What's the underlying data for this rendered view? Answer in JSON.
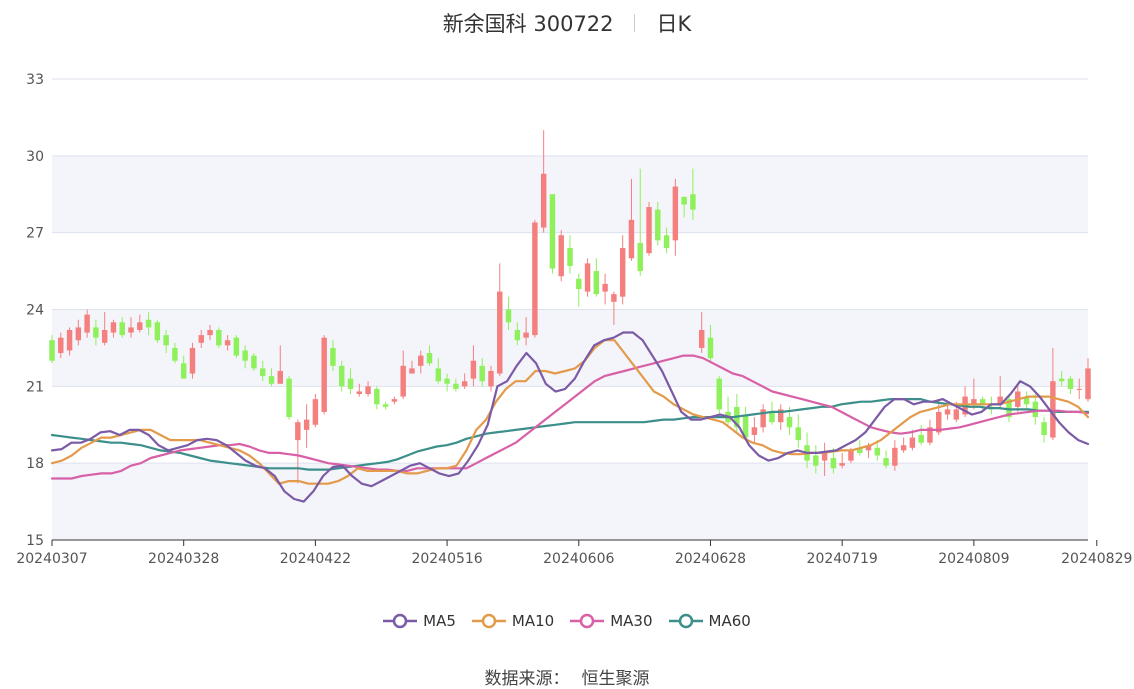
{
  "header": {
    "stock": "新余国科 300722",
    "period": "日K"
  },
  "source": {
    "label": "数据来源：",
    "value": "恒生聚源"
  },
  "colors": {
    "up": "#f47f7f",
    "down": "#8ef05b",
    "ma5": "#7b5aa6",
    "ma10": "#e39a4b",
    "ma30": "#d860a6",
    "ma60": "#3c8f8a",
    "band": "#f4f5fb",
    "grid": "#dde2ee"
  },
  "chart_data": {
    "type": "candlestick",
    "y_ticks": [
      15,
      18,
      21,
      24,
      27,
      30,
      33
    ],
    "ylim": [
      15,
      33
    ],
    "x_ticks": [
      {
        "index": 0,
        "label": "20240307"
      },
      {
        "index": 15,
        "label": "20240328"
      },
      {
        "index": 30,
        "label": "20240422"
      },
      {
        "index": 45,
        "label": "20240516"
      },
      {
        "index": 60,
        "label": "20240606"
      },
      {
        "index": 75,
        "label": "20240628"
      },
      {
        "index": 90,
        "label": "20240719"
      },
      {
        "index": 105,
        "label": "20240809"
      },
      {
        "index": 119,
        "label": "20240829"
      }
    ],
    "candles": [
      [
        22.8,
        22.0,
        23.0,
        21.9
      ],
      [
        22.3,
        22.9,
        23.1,
        22.1
      ],
      [
        22.4,
        23.2,
        23.3,
        22.2
      ],
      [
        22.8,
        23.3,
        23.6,
        22.6
      ],
      [
        23.1,
        23.8,
        24.0,
        22.9
      ],
      [
        23.3,
        22.9,
        23.6,
        22.6
      ],
      [
        22.7,
        23.2,
        23.9,
        22.6
      ],
      [
        23.1,
        23.5,
        23.6,
        22.9
      ],
      [
        23.5,
        23.0,
        23.7,
        22.9
      ],
      [
        23.1,
        23.3,
        23.7,
        22.9
      ],
      [
        23.2,
        23.5,
        23.8,
        23.1
      ],
      [
        23.6,
        23.3,
        23.9,
        23.0
      ],
      [
        23.5,
        22.8,
        23.6,
        22.7
      ],
      [
        23.0,
        22.6,
        23.2,
        22.3
      ],
      [
        22.5,
        22.0,
        22.7,
        21.9
      ],
      [
        21.9,
        21.3,
        22.2,
        21.3
      ],
      [
        21.5,
        22.5,
        22.7,
        21.3
      ],
      [
        22.7,
        23.0,
        23.2,
        22.5
      ],
      [
        23.0,
        23.2,
        23.4,
        22.8
      ],
      [
        23.2,
        22.6,
        23.3,
        22.5
      ],
      [
        22.6,
        22.8,
        23.0,
        22.4
      ],
      [
        22.9,
        22.2,
        23.0,
        22.1
      ],
      [
        22.4,
        22.0,
        22.6,
        21.7
      ],
      [
        22.2,
        21.7,
        22.3,
        21.6
      ],
      [
        21.7,
        21.4,
        22.0,
        21.2
      ],
      [
        21.4,
        21.1,
        21.7,
        21.0
      ],
      [
        21.1,
        21.6,
        22.6,
        21.1
      ],
      [
        21.3,
        19.8,
        21.4,
        19.7
      ],
      [
        18.9,
        19.6,
        19.7,
        17.2
      ],
      [
        19.3,
        19.7,
        20.3,
        18.6
      ],
      [
        19.5,
        20.5,
        20.7,
        19.4
      ],
      [
        20.0,
        22.9,
        23.0,
        19.9
      ],
      [
        22.5,
        21.8,
        22.8,
        21.6
      ],
      [
        21.8,
        21.0,
        22.0,
        20.8
      ],
      [
        21.3,
        20.9,
        21.7,
        20.7
      ],
      [
        20.7,
        20.8,
        21.1,
        20.6
      ],
      [
        20.7,
        21.0,
        21.2,
        20.6
      ],
      [
        20.9,
        20.3,
        21.0,
        20.1
      ],
      [
        20.3,
        20.2,
        20.4,
        20.1
      ],
      [
        20.4,
        20.5,
        20.6,
        20.3
      ],
      [
        20.6,
        21.8,
        22.4,
        20.5
      ],
      [
        21.5,
        21.7,
        22.0,
        21.5
      ],
      [
        21.8,
        22.2,
        22.4,
        21.5
      ],
      [
        22.3,
        21.9,
        22.6,
        21.8
      ],
      [
        21.7,
        21.2,
        22.1,
        21.1
      ],
      [
        21.3,
        21.1,
        21.5,
        20.8
      ],
      [
        21.1,
        20.9,
        21.3,
        20.8
      ],
      [
        21.0,
        21.2,
        21.5,
        20.9
      ],
      [
        21.3,
        22.0,
        22.6,
        21.0
      ],
      [
        21.8,
        21.2,
        22.1,
        21.0
      ],
      [
        21.0,
        21.6,
        21.8,
        20.8
      ],
      [
        21.5,
        24.7,
        25.8,
        21.4
      ],
      [
        24.0,
        23.5,
        24.5,
        23.2
      ],
      [
        23.2,
        22.8,
        23.5,
        22.6
      ],
      [
        22.9,
        23.1,
        23.7,
        22.6
      ],
      [
        23.0,
        27.4,
        27.5,
        22.9
      ],
      [
        27.2,
        29.3,
        31.0,
        27.0
      ],
      [
        28.5,
        25.6,
        28.5,
        25.4
      ],
      [
        25.3,
        26.9,
        27.1,
        25.1
      ],
      [
        26.4,
        25.7,
        26.9,
        25.4
      ],
      [
        25.2,
        24.8,
        25.4,
        24.1
      ],
      [
        24.7,
        25.8,
        26.0,
        24.5
      ],
      [
        25.5,
        24.6,
        26.0,
        24.5
      ],
      [
        24.7,
        25.0,
        25.4,
        24.2
      ],
      [
        24.3,
        24.6,
        24.7,
        23.4
      ],
      [
        24.5,
        26.4,
        26.9,
        24.2
      ],
      [
        26.0,
        27.5,
        29.1,
        25.9
      ],
      [
        26.6,
        25.5,
        29.5,
        25.3
      ],
      [
        26.2,
        28.0,
        28.2,
        26.1
      ],
      [
        27.9,
        26.7,
        28.2,
        26.5
      ],
      [
        26.9,
        26.4,
        27.2,
        26.2
      ],
      [
        26.7,
        28.8,
        29.1,
        26.1
      ],
      [
        28.4,
        28.1,
        28.4,
        27.6
      ],
      [
        28.5,
        27.9,
        29.5,
        27.5
      ],
      [
        22.5,
        23.2,
        23.9,
        22.3
      ],
      [
        22.9,
        22.1,
        23.4,
        21.9
      ],
      [
        21.3,
        20.1,
        21.4,
        19.9
      ],
      [
        20.0,
        19.6,
        20.6,
        19.5
      ],
      [
        20.2,
        19.4,
        20.7,
        19.2
      ],
      [
        19.9,
        19.0,
        20.2,
        18.9
      ],
      [
        19.1,
        19.4,
        19.8,
        18.8
      ],
      [
        19.4,
        20.1,
        20.3,
        19.2
      ],
      [
        20.0,
        19.6,
        20.4,
        19.5
      ],
      [
        19.6,
        20.1,
        20.3,
        19.3
      ],
      [
        19.8,
        19.4,
        20.2,
        19.1
      ],
      [
        19.4,
        18.9,
        19.9,
        18.6
      ],
      [
        18.7,
        18.1,
        19.2,
        17.8
      ],
      [
        18.3,
        17.9,
        18.7,
        17.6
      ],
      [
        18.1,
        18.4,
        18.8,
        17.5
      ],
      [
        18.2,
        17.8,
        18.6,
        17.6
      ],
      [
        17.9,
        18.0,
        18.4,
        17.8
      ],
      [
        18.1,
        18.5,
        18.6,
        18.0
      ],
      [
        18.6,
        18.4,
        18.9,
        18.3
      ],
      [
        18.5,
        18.7,
        18.8,
        18.2
      ],
      [
        18.6,
        18.3,
        18.9,
        18.1
      ],
      [
        18.2,
        17.9,
        18.5,
        17.8
      ],
      [
        17.9,
        18.6,
        18.9,
        17.7
      ],
      [
        18.5,
        18.7,
        19.0,
        18.4
      ],
      [
        18.6,
        19.0,
        19.3,
        18.5
      ],
      [
        19.1,
        18.8,
        19.5,
        18.7
      ],
      [
        18.8,
        19.4,
        19.7,
        18.7
      ],
      [
        19.2,
        20.0,
        20.5,
        19.1
      ],
      [
        19.9,
        20.1,
        20.3,
        19.7
      ],
      [
        19.7,
        20.1,
        20.4,
        19.6
      ],
      [
        19.9,
        20.6,
        21.0,
        19.8
      ],
      [
        20.3,
        20.5,
        21.3,
        20.1
      ],
      [
        20.5,
        20.3,
        20.6,
        20.1
      ],
      [
        20.2,
        20.1,
        20.6,
        19.9
      ],
      [
        20.3,
        20.6,
        21.4,
        20.1
      ],
      [
        20.5,
        19.8,
        20.7,
        19.6
      ],
      [
        20.2,
        20.8,
        21.1,
        20.0
      ],
      [
        20.6,
        20.3,
        20.8,
        20.1
      ],
      [
        20.4,
        19.8,
        20.7,
        19.5
      ],
      [
        19.6,
        19.1,
        19.8,
        18.8
      ],
      [
        19.0,
        21.2,
        22.5,
        18.9
      ],
      [
        21.3,
        21.2,
        21.6,
        21.0
      ],
      [
        21.3,
        20.9,
        21.4,
        20.7
      ],
      [
        20.9,
        20.9,
        21.3,
        20.5
      ],
      [
        20.5,
        21.7,
        22.1,
        20.4
      ]
    ],
    "ma5": [
      18.5,
      18.55,
      18.8,
      18.8,
      18.95,
      19.2,
      19.25,
      19.1,
      19.3,
      19.3,
      19.1,
      18.7,
      18.5,
      18.6,
      18.7,
      18.9,
      18.95,
      18.9,
      18.7,
      18.4,
      18.1,
      17.9,
      17.8,
      17.5,
      16.9,
      16.6,
      16.5,
      16.9,
      17.5,
      17.85,
      17.9,
      17.5,
      17.2,
      17.1,
      17.3,
      17.5,
      17.7,
      17.9,
      18.0,
      17.8,
      17.6,
      17.5,
      17.6,
      18.1,
      18.7,
      19.5,
      21.0,
      21.2,
      21.8,
      22.3,
      21.9,
      21.1,
      20.8,
      20.9,
      21.3,
      22.0,
      22.6,
      22.8,
      22.9,
      23.1,
      23.1,
      22.8,
      22.2,
      21.6,
      20.8,
      20.0,
      19.7,
      19.7,
      19.8,
      19.9,
      19.8,
      19.4,
      18.7,
      18.3,
      18.1,
      18.2,
      18.4,
      18.5,
      18.4,
      18.4,
      18.45,
      18.5,
      18.7,
      18.9,
      19.2,
      19.7,
      20.2,
      20.5,
      20.5,
      20.3,
      20.4,
      20.4,
      20.5,
      20.3,
      20.1,
      19.9,
      20.0,
      20.3,
      20.3,
      20.7,
      21.2,
      21.0,
      20.6,
      20.1,
      19.6,
      19.2,
      18.9,
      18.75
    ],
    "ma10": [
      18.0,
      18.1,
      18.3,
      18.6,
      18.8,
      19.0,
      19.0,
      19.1,
      19.2,
      19.3,
      19.3,
      19.1,
      18.9,
      18.9,
      18.9,
      18.9,
      18.8,
      18.7,
      18.6,
      18.5,
      18.3,
      18.0,
      17.6,
      17.2,
      17.3,
      17.3,
      17.2,
      17.2,
      17.2,
      17.3,
      17.5,
      17.8,
      17.7,
      17.7,
      17.7,
      17.7,
      17.6,
      17.6,
      17.7,
      17.8,
      17.8,
      17.9,
      18.5,
      19.3,
      19.7,
      20.4,
      20.9,
      21.2,
      21.2,
      21.6,
      21.6,
      21.5,
      21.6,
      21.7,
      22.0,
      22.5,
      22.8,
      22.8,
      22.3,
      21.8,
      21.3,
      20.8,
      20.6,
      20.3,
      20.1,
      19.9,
      19.8,
      19.7,
      19.6,
      19.3,
      19.0,
      18.8,
      18.7,
      18.5,
      18.4,
      18.35,
      18.35,
      18.4,
      18.4,
      18.45,
      18.5,
      18.5,
      18.6,
      18.7,
      18.9,
      19.2,
      19.5,
      19.8,
      20.0,
      20.1,
      20.2,
      20.3,
      20.3,
      20.3,
      20.3,
      20.3,
      20.3,
      20.4,
      20.5,
      20.6,
      20.6,
      20.6,
      20.5,
      20.4,
      20.2,
      19.8
    ],
    "ma30": [
      17.4,
      17.4,
      17.4,
      17.5,
      17.55,
      17.6,
      17.6,
      17.7,
      17.9,
      18.0,
      18.2,
      18.3,
      18.4,
      18.5,
      18.55,
      18.6,
      18.65,
      18.7,
      18.7,
      18.75,
      18.65,
      18.5,
      18.4,
      18.4,
      18.35,
      18.3,
      18.2,
      18.1,
      18.0,
      17.95,
      17.9,
      17.85,
      17.8,
      17.75,
      17.75,
      17.7,
      17.7,
      17.8,
      17.8,
      17.8,
      17.8,
      17.8,
      17.8,
      18.0,
      18.2,
      18.4,
      18.6,
      18.8,
      19.1,
      19.4,
      19.7,
      20.0,
      20.3,
      20.6,
      20.9,
      21.2,
      21.4,
      21.5,
      21.6,
      21.7,
      21.8,
      21.9,
      22.0,
      22.1,
      22.2,
      22.2,
      22.1,
      21.9,
      21.7,
      21.5,
      21.4,
      21.2,
      21.0,
      20.8,
      20.7,
      20.6,
      20.5,
      20.4,
      20.3,
      20.2,
      20.0,
      19.8,
      19.6,
      19.4,
      19.3,
      19.2,
      19.15,
      19.2,
      19.3,
      19.3,
      19.3,
      19.35,
      19.4,
      19.5,
      19.6,
      19.7,
      19.8,
      19.9,
      19.95,
      20.0,
      20.05,
      20.05,
      20.05,
      20.0,
      20.0,
      19.95
    ],
    "ma60": [
      19.1,
      19.05,
      19.0,
      18.95,
      18.9,
      18.85,
      18.8,
      18.8,
      18.75,
      18.7,
      18.6,
      18.5,
      18.45,
      18.4,
      18.3,
      18.2,
      18.1,
      18.05,
      18.0,
      17.95,
      17.9,
      17.85,
      17.8,
      17.8,
      17.8,
      17.8,
      17.75,
      17.75,
      17.75,
      17.8,
      17.85,
      17.9,
      17.95,
      18.0,
      18.05,
      18.15,
      18.3,
      18.45,
      18.55,
      18.65,
      18.7,
      18.8,
      18.95,
      19.05,
      19.15,
      19.2,
      19.25,
      19.3,
      19.35,
      19.4,
      19.45,
      19.5,
      19.55,
      19.6,
      19.6,
      19.6,
      19.6,
      19.6,
      19.6,
      19.6,
      19.6,
      19.65,
      19.7,
      19.7,
      19.75,
      19.8,
      19.8,
      19.8,
      19.8,
      19.8,
      19.85,
      19.9,
      19.95,
      20.0,
      20.0,
      20.05,
      20.1,
      20.15,
      20.2,
      20.2,
      20.3,
      20.35,
      20.4,
      20.4,
      20.45,
      20.5,
      20.5,
      20.5,
      20.5,
      20.4,
      20.35,
      20.3,
      20.25,
      20.2,
      20.2,
      20.15,
      20.15,
      20.1,
      20.1,
      20.1,
      20.05,
      20.05,
      20.0,
      20.0,
      20.0,
      20.0
    ],
    "legend": [
      {
        "key": "ma5",
        "label": "MA5"
      },
      {
        "key": "ma10",
        "label": "MA10"
      },
      {
        "key": "ma30",
        "label": "MA30"
      },
      {
        "key": "ma60",
        "label": "MA60"
      }
    ]
  }
}
